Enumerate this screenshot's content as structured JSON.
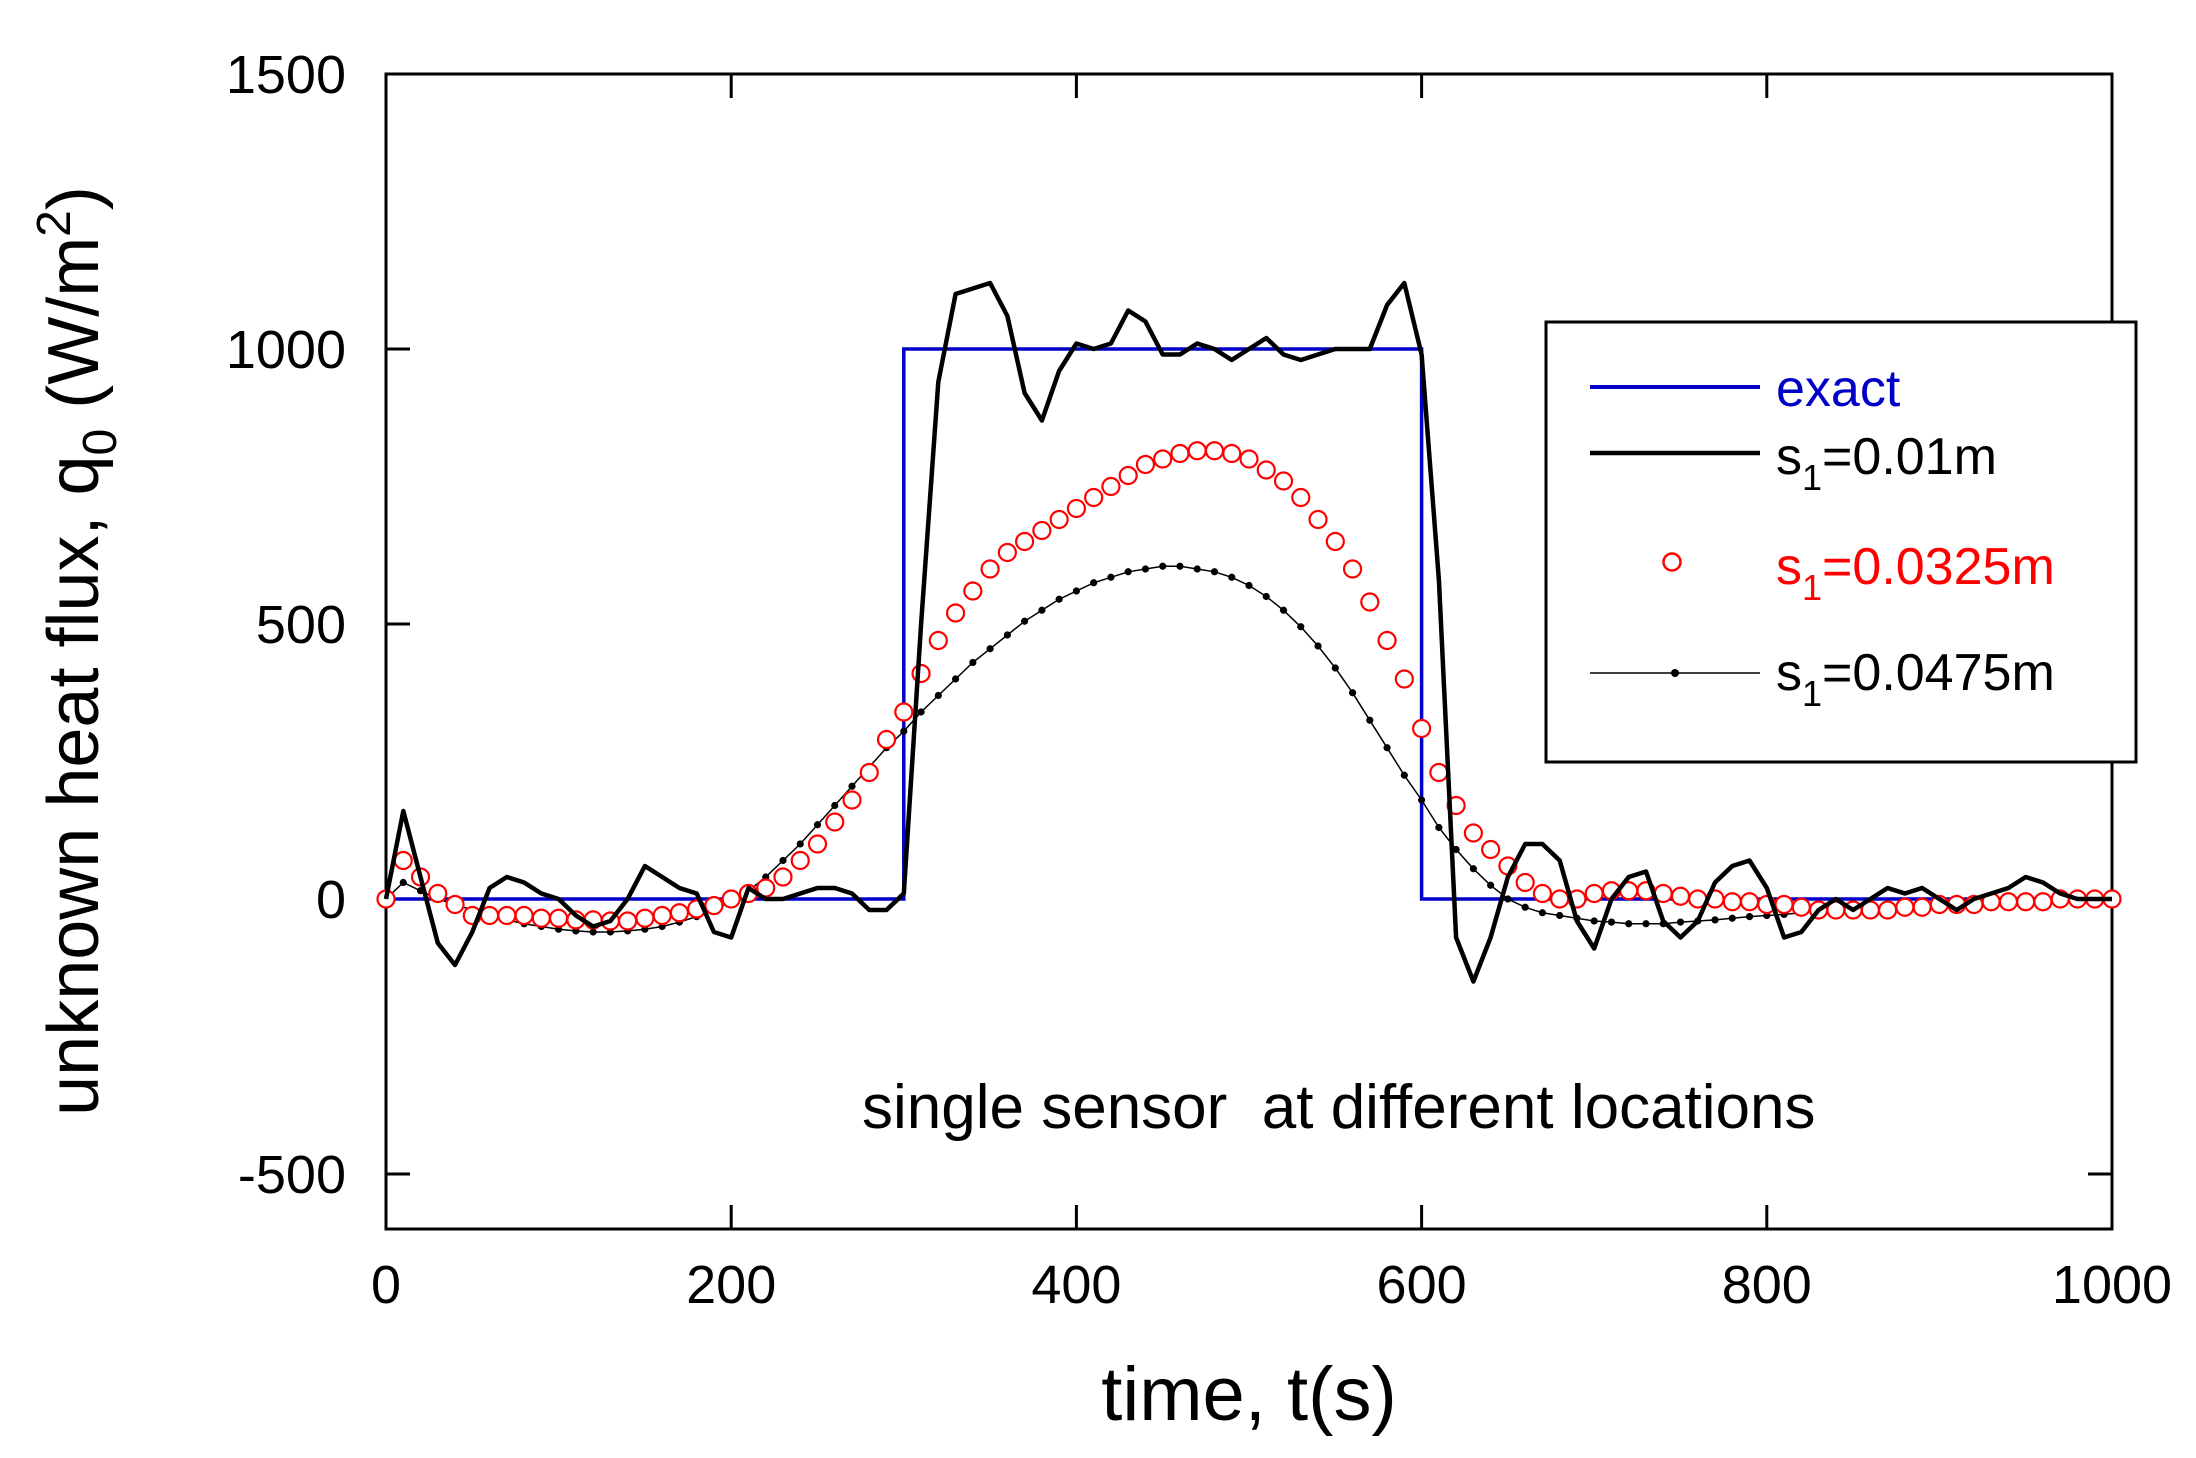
{
  "chart_data": {
    "type": "line",
    "title": "",
    "xlabel": "time, t(s)",
    "ylabel": {
      "main": "unknown heat flux, q",
      "sub": "0",
      "unit_open": " (W/m",
      "sup": "2",
      "unit_close": ")"
    },
    "xlim": [
      0,
      1000
    ],
    "ylim": [
      -600,
      1500
    ],
    "xticks": [
      0,
      200,
      400,
      600,
      800,
      1000
    ],
    "yticks": [
      -500,
      0,
      500,
      1000,
      1500
    ],
    "xtick_labels": [
      "0",
      "200",
      "400",
      "600",
      "800",
      "1000"
    ],
    "ytick_labels": [
      "-500",
      "0",
      "500",
      "1000",
      "1500"
    ],
    "annotation": "single sensor  at different locations",
    "legend_position": "top-right",
    "legend": [
      {
        "text": "exact",
        "main": "",
        "sub": "",
        "rest": ""
      },
      {
        "text": "",
        "main": "s",
        "sub": "1",
        "rest": "=0.01m"
      },
      {
        "text": "",
        "main": "s",
        "sub": "1",
        "rest": "=0.0325m"
      },
      {
        "text": "",
        "main": "s",
        "sub": "1",
        "rest": "=0.0475m"
      }
    ],
    "colors": {
      "exact": "#0000c8",
      "s1_001": "#000000",
      "s1_00325": "#ff0000",
      "s1_00475": "#000000"
    },
    "series": [
      {
        "name": "exact",
        "x": [
          0,
          300,
          300,
          600,
          600,
          1000
        ],
        "y": [
          0,
          0,
          1000,
          1000,
          0,
          0
        ]
      },
      {
        "name": "s1=0.01m",
        "x": [
          0,
          10,
          20,
          30,
          40,
          50,
          60,
          70,
          80,
          90,
          100,
          110,
          120,
          130,
          140,
          150,
          160,
          170,
          180,
          190,
          200,
          210,
          220,
          230,
          240,
          250,
          260,
          270,
          280,
          290,
          300,
          310,
          320,
          330,
          340,
          350,
          360,
          370,
          380,
          390,
          400,
          410,
          420,
          430,
          440,
          450,
          460,
          470,
          480,
          490,
          500,
          510,
          520,
          530,
          540,
          550,
          560,
          570,
          580,
          590,
          600,
          610,
          620,
          630,
          640,
          650,
          660,
          670,
          680,
          690,
          700,
          710,
          720,
          730,
          740,
          750,
          760,
          770,
          780,
          790,
          800,
          810,
          820,
          830,
          840,
          850,
          860,
          870,
          880,
          890,
          900,
          910,
          920,
          930,
          940,
          950,
          960,
          970,
          980,
          990,
          1000
        ],
        "y": [
          0,
          160,
          40,
          -80,
          -120,
          -60,
          20,
          40,
          30,
          10,
          0,
          -30,
          -50,
          -40,
          0,
          60,
          40,
          20,
          10,
          -60,
          -70,
          20,
          0,
          0,
          10,
          20,
          20,
          10,
          -20,
          -20,
          10,
          500,
          940,
          1100,
          1110,
          1120,
          1060,
          920,
          870,
          960,
          1010,
          1000,
          1010,
          1070,
          1050,
          990,
          990,
          1010,
          1000,
          980,
          1000,
          1020,
          990,
          980,
          990,
          1000,
          1000,
          1000,
          1080,
          1120,
          990,
          580,
          -70,
          -150,
          -70,
          40,
          100,
          100,
          70,
          -40,
          -90,
          0,
          40,
          50,
          -40,
          -70,
          -40,
          30,
          60,
          70,
          20,
          -70,
          -60,
          -20,
          0,
          -20,
          0,
          20,
          10,
          20,
          0,
          -20,
          0,
          10,
          20,
          40,
          30,
          10,
          0,
          0,
          0
        ]
      },
      {
        "name": "s1=0.0325m",
        "x": [
          0,
          10,
          20,
          30,
          40,
          50,
          60,
          70,
          80,
          90,
          100,
          110,
          120,
          130,
          140,
          150,
          160,
          170,
          180,
          190,
          200,
          210,
          220,
          230,
          240,
          250,
          260,
          270,
          280,
          290,
          300,
          310,
          320,
          330,
          340,
          350,
          360,
          370,
          380,
          390,
          400,
          410,
          420,
          430,
          440,
          450,
          460,
          470,
          480,
          490,
          500,
          510,
          520,
          530,
          540,
          550,
          560,
          570,
          580,
          590,
          600,
          610,
          620,
          630,
          640,
          650,
          660,
          670,
          680,
          690,
          700,
          710,
          720,
          730,
          740,
          750,
          760,
          770,
          780,
          790,
          800,
          810,
          820,
          830,
          840,
          850,
          860,
          870,
          880,
          890,
          900,
          910,
          920,
          930,
          940,
          950,
          960,
          970,
          980,
          990,
          1000
        ],
        "y": [
          0,
          70,
          40,
          10,
          -10,
          -30,
          -30,
          -30,
          -30,
          -35,
          -35,
          -38,
          -38,
          -40,
          -40,
          -35,
          -30,
          -25,
          -18,
          -12,
          0,
          10,
          20,
          40,
          70,
          100,
          140,
          180,
          230,
          290,
          340,
          410,
          470,
          520,
          560,
          600,
          630,
          650,
          670,
          690,
          710,
          730,
          750,
          770,
          790,
          800,
          810,
          815,
          815,
          810,
          800,
          780,
          760,
          730,
          690,
          650,
          600,
          540,
          470,
          400,
          310,
          230,
          170,
          120,
          90,
          60,
          30,
          10,
          0,
          0,
          10,
          15,
          15,
          15,
          10,
          5,
          0,
          0,
          -5,
          -5,
          -10,
          -10,
          -15,
          -20,
          -20,
          -20,
          -20,
          -20,
          -15,
          -15,
          -10,
          -10,
          -10,
          -5,
          -5,
          -5,
          -5,
          0,
          0,
          0,
          0
        ]
      },
      {
        "name": "s1=0.0475m",
        "x": [
          0,
          10,
          20,
          30,
          40,
          50,
          60,
          70,
          80,
          90,
          100,
          110,
          120,
          130,
          140,
          150,
          160,
          170,
          180,
          190,
          200,
          210,
          220,
          230,
          240,
          250,
          260,
          270,
          280,
          290,
          300,
          310,
          320,
          330,
          340,
          350,
          360,
          370,
          380,
          390,
          400,
          410,
          420,
          430,
          440,
          450,
          460,
          470,
          480,
          490,
          500,
          510,
          520,
          530,
          540,
          550,
          560,
          570,
          580,
          590,
          600,
          610,
          620,
          630,
          640,
          650,
          660,
          670,
          680,
          690,
          700,
          710,
          720,
          730,
          740,
          750,
          760,
          770,
          780,
          790,
          800,
          810,
          820,
          830,
          840,
          850,
          860,
          870,
          880,
          890,
          900,
          910,
          920,
          930,
          940,
          950,
          960,
          970,
          980,
          990,
          1000
        ],
        "y": [
          0,
          30,
          15,
          0,
          -10,
          -20,
          -30,
          -38,
          -45,
          -50,
          -55,
          -58,
          -60,
          -60,
          -58,
          -55,
          -50,
          -42,
          -32,
          -20,
          -5,
          15,
          40,
          70,
          100,
          135,
          170,
          205,
          240,
          275,
          305,
          340,
          370,
          400,
          430,
          455,
          480,
          505,
          525,
          545,
          560,
          575,
          585,
          595,
          600,
          605,
          605,
          600,
          595,
          585,
          570,
          550,
          525,
          495,
          460,
          420,
          375,
          325,
          275,
          225,
          180,
          130,
          90,
          55,
          25,
          0,
          -15,
          -25,
          -30,
          -35,
          -40,
          -42,
          -45,
          -45,
          -45,
          -42,
          -40,
          -38,
          -35,
          -32,
          -30,
          -28,
          -25,
          -22,
          -20,
          -18,
          -15,
          -13,
          -11,
          -10,
          -8,
          -6,
          -5,
          -4,
          -3,
          -2,
          -1,
          0,
          0,
          0,
          0
        ]
      }
    ]
  }
}
